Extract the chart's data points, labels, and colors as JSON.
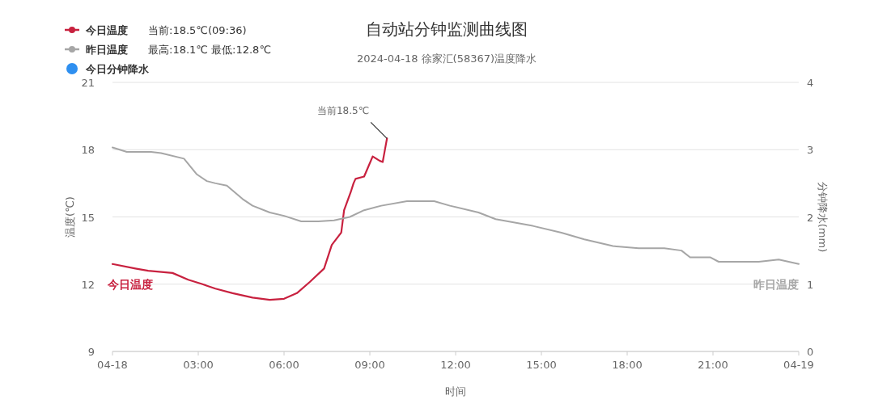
{
  "chart_data": {
    "type": "line",
    "title": "自动站分钟监测曲线图",
    "subtitle": "2024-04-18 徐家汇(58367)温度降水",
    "xlabel": "时间",
    "ylabel": "温度(℃)",
    "y2label": "分钟降水(mm)",
    "xlim": [
      0,
      24
    ],
    "xticks": [
      {
        "value": 0,
        "label": "04-18"
      },
      {
        "value": 3,
        "label": "03:00"
      },
      {
        "value": 6,
        "label": "06:00"
      },
      {
        "value": 9,
        "label": "09:00"
      },
      {
        "value": 12,
        "label": "12:00"
      },
      {
        "value": 15,
        "label": "15:00"
      },
      {
        "value": 18,
        "label": "18:00"
      },
      {
        "value": 21,
        "label": "21:00"
      },
      {
        "value": 24,
        "label": "04-19"
      }
    ],
    "ylim": [
      9,
      21
    ],
    "yticks": [
      9,
      12,
      15,
      18,
      21
    ],
    "y2lim": [
      0,
      4
    ],
    "y2ticks": [
      0,
      1,
      2,
      3,
      4
    ],
    "grid": "y",
    "legend": "top left",
    "annotations": [
      "当前:18.5℃(09:36)",
      "最高:18.1℃ 最低:12.8℃",
      {
        "text": "当前18.5℃",
        "x": 9.6,
        "y": 18.5
      }
    ],
    "series": [
      {
        "name": "今日温度",
        "color": "#c8213f",
        "x": [
          0,
          0.8,
          1.25,
          2.1,
          2.65,
          3.15,
          3.6,
          4.2,
          4.9,
          5.5,
          6,
          6.45,
          6.9,
          7.4,
          7.67,
          8,
          8.1,
          8.33,
          8.43,
          8.5,
          8.8,
          8.9,
          9.1,
          9.35,
          9.45,
          9.6
        ],
        "values": [
          12.9,
          12.7,
          12.6,
          12.5,
          12.2,
          12,
          11.8,
          11.6,
          11.4,
          11.3,
          11.35,
          11.6,
          12.1,
          12.7,
          13.75,
          14.3,
          15.3,
          16.1,
          16.5,
          16.7,
          16.8,
          17.1,
          17.7,
          17.5,
          17.45,
          18.5
        ]
      },
      {
        "name": "昨日温度",
        "color": "#a6a6a6",
        "x": [
          0,
          0.5,
          1.35,
          1.7,
          2.5,
          2.95,
          3.3,
          3.6,
          4,
          4.55,
          4.9,
          5.5,
          6,
          6.6,
          7.2,
          7.75,
          8.3,
          8.8,
          9.4,
          10.3,
          11.25,
          11.8,
          12.8,
          13.4,
          14.7,
          15.7,
          16.5,
          17.5,
          18.4,
          19.3,
          19.9,
          20.2,
          20.9,
          21.2,
          22.6,
          23.3,
          24
        ],
        "values": [
          18.1,
          17.9,
          17.9,
          17.85,
          17.6,
          16.9,
          16.6,
          16.5,
          16.4,
          15.8,
          15.5,
          15.2,
          15.05,
          14.8,
          14.8,
          14.85,
          15,
          15.3,
          15.5,
          15.7,
          15.7,
          15.5,
          15.2,
          14.9,
          14.6,
          14.3,
          14,
          13.7,
          13.6,
          13.6,
          13.5,
          13.2,
          13.2,
          13,
          13,
          13.1,
          12.9
        ]
      },
      {
        "name": "今日分钟降水",
        "color": "#2e8ff0",
        "type": "scatter"
      }
    ]
  }
}
